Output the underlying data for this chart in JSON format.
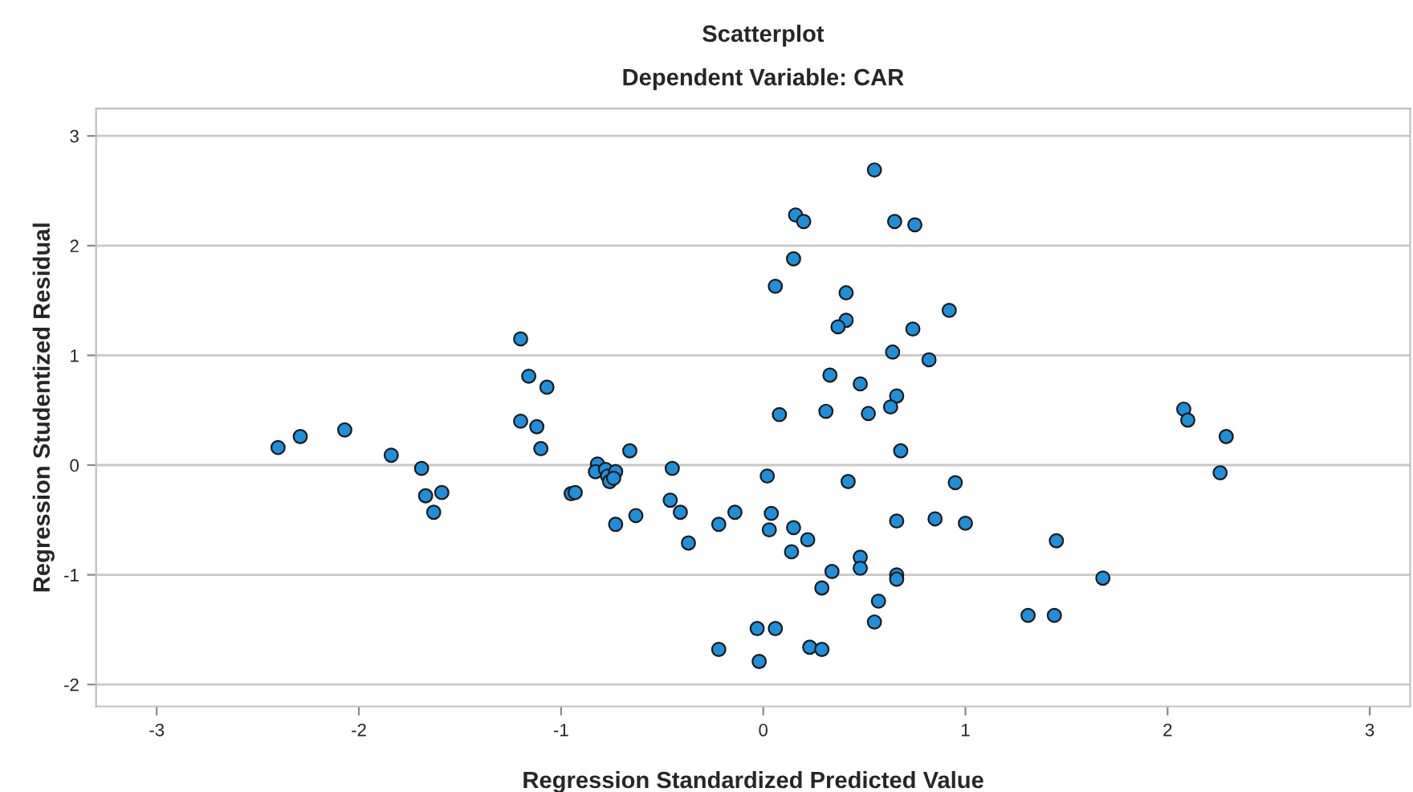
{
  "chart_data": {
    "type": "scatter",
    "title": "Scatterplot",
    "subtitle": "Dependent Variable: CAR",
    "xlabel": "Regression Standardized Predicted Value",
    "ylabel": "Regression Studentized Residual",
    "xlim": [
      -3.3,
      3.2
    ],
    "ylim": [
      -2.2,
      3.25
    ],
    "xticks": [
      -3,
      -2,
      -1,
      0,
      1,
      2,
      3
    ],
    "yticks": [
      -2,
      -1,
      0,
      1,
      2,
      3
    ],
    "grid": "y",
    "marker": "circle",
    "series": [
      {
        "color": "#1e8fdb",
        "x": [
          -2.4,
          -2.29,
          -2.07,
          -1.84,
          -1.69,
          -1.67,
          -1.63,
          -1.59,
          -1.2,
          -1.16,
          -1.07,
          -1.2,
          -1.12,
          -1.1,
          -0.95,
          -0.93,
          -0.82,
          -0.83,
          -0.78,
          -0.77,
          -0.76,
          -0.73,
          -0.74,
          -0.66,
          -0.73,
          -0.63,
          -0.45,
          -0.46,
          -0.41,
          -0.37,
          -0.22,
          -0.14,
          -0.22,
          0.55,
          0.16,
          0.2,
          0.65,
          0.75,
          0.15,
          0.06,
          0.41,
          0.41,
          0.37,
          0.92,
          0.74,
          0.64,
          0.82,
          0.33,
          0.48,
          0.66,
          0.63,
          0.08,
          0.31,
          0.52,
          0.68,
          0.02,
          0.42,
          0.95,
          0.04,
          0.03,
          0.15,
          0.22,
          0.14,
          0.66,
          0.85,
          1.0,
          0.48,
          0.48,
          0.34,
          0.66,
          0.66,
          0.29,
          0.57,
          0.55,
          -0.03,
          0.06,
          0.23,
          0.29,
          -0.02,
          1.31,
          1.44,
          1.68,
          1.45,
          2.08,
          2.1,
          2.29,
          2.26
        ],
        "values": [
          0.16,
          0.26,
          0.32,
          0.09,
          -0.03,
          -0.28,
          -0.43,
          -0.25,
          1.15,
          0.81,
          0.71,
          0.4,
          0.35,
          0.15,
          -0.26,
          -0.25,
          0.01,
          -0.06,
          -0.04,
          -0.1,
          -0.15,
          -0.06,
          -0.12,
          0.13,
          -0.54,
          -0.46,
          -0.03,
          -0.32,
          -0.43,
          -0.71,
          -0.54,
          -0.43,
          -1.68,
          2.69,
          2.28,
          2.22,
          2.22,
          2.19,
          1.88,
          1.63,
          1.57,
          1.32,
          1.26,
          1.41,
          1.24,
          1.03,
          0.96,
          0.82,
          0.74,
          0.63,
          0.53,
          0.46,
          0.49,
          0.47,
          0.13,
          -0.1,
          -0.15,
          -0.16,
          -0.44,
          -0.59,
          -0.57,
          -0.68,
          -0.79,
          -0.51,
          -0.49,
          -0.53,
          -0.84,
          -0.94,
          -0.97,
          -1.0,
          -1.04,
          -1.12,
          -1.24,
          -1.43,
          -1.49,
          -1.49,
          -1.66,
          -1.68,
          -1.79,
          -1.37,
          -1.37,
          -1.03,
          -0.69,
          0.51,
          0.41,
          0.26,
          -0.07
        ]
      }
    ]
  }
}
